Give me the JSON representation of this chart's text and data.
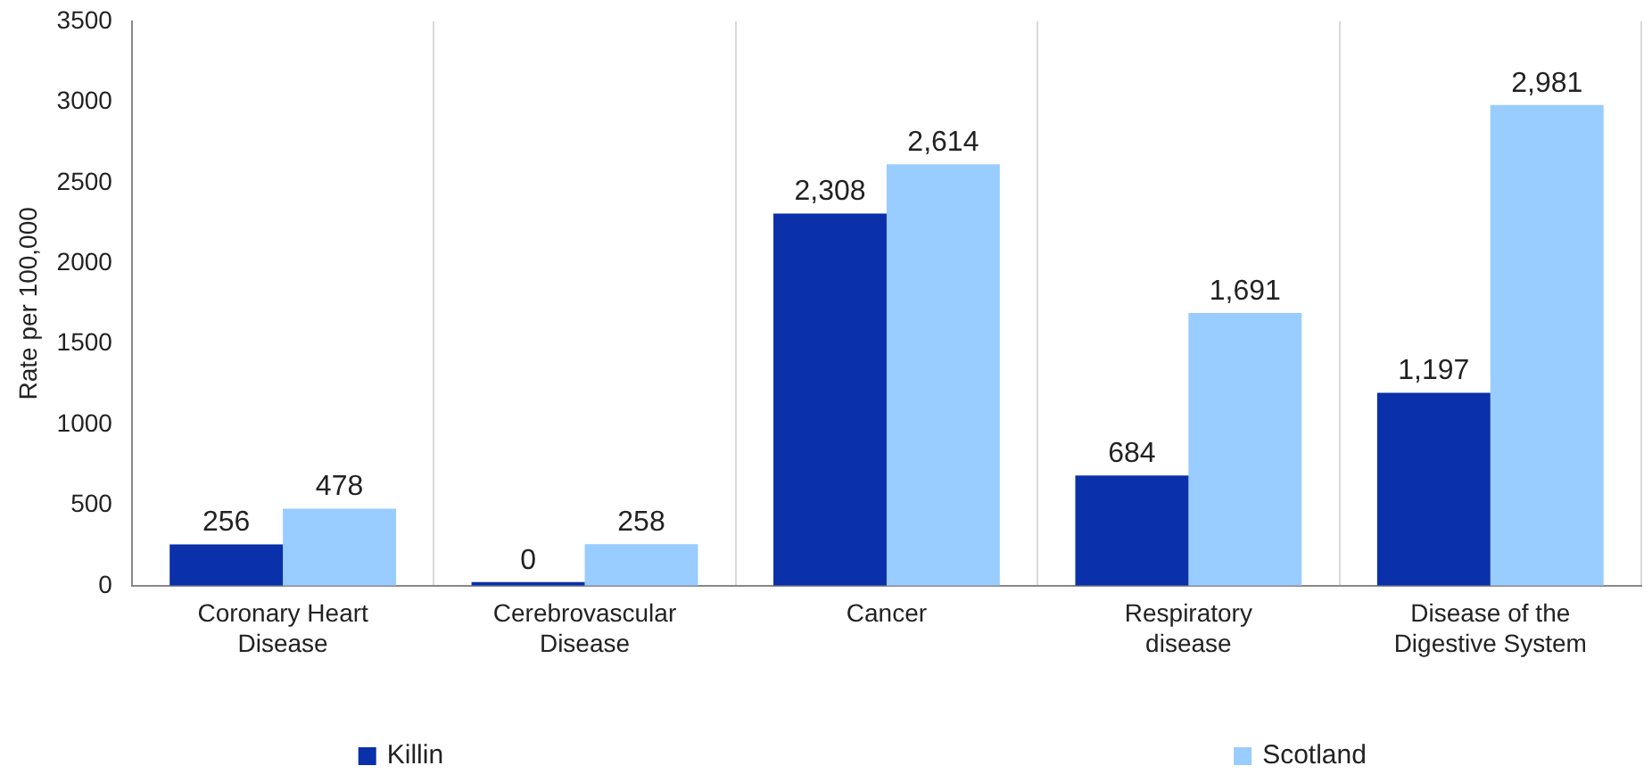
{
  "chart_data": {
    "type": "bar",
    "ylabel": "Rate per 100,000",
    "categories": [
      "Coronary Heart Disease",
      "Cerebrovascular Disease",
      "Cancer",
      "Respiratory disease",
      "Disease of the Digestive System"
    ],
    "series": [
      {
        "name": "Killin",
        "color": "#0a30aa",
        "values": [
          256,
          0,
          2308,
          684,
          1197
        ],
        "value_labels": [
          "256",
          "0",
          "2,308",
          "684",
          "1,197"
        ]
      },
      {
        "name": "Scotland",
        "color": "#99ccff",
        "values": [
          478,
          258,
          2614,
          1691,
          2981
        ],
        "value_labels": [
          "478",
          "258",
          "2,614",
          "1,691",
          "2,981"
        ]
      }
    ],
    "ylim": [
      0,
      3500
    ],
    "yticks": [
      0,
      500,
      1000,
      1500,
      2000,
      2500,
      3000,
      3500
    ],
    "grid": "x",
    "legend": "bottom"
  }
}
